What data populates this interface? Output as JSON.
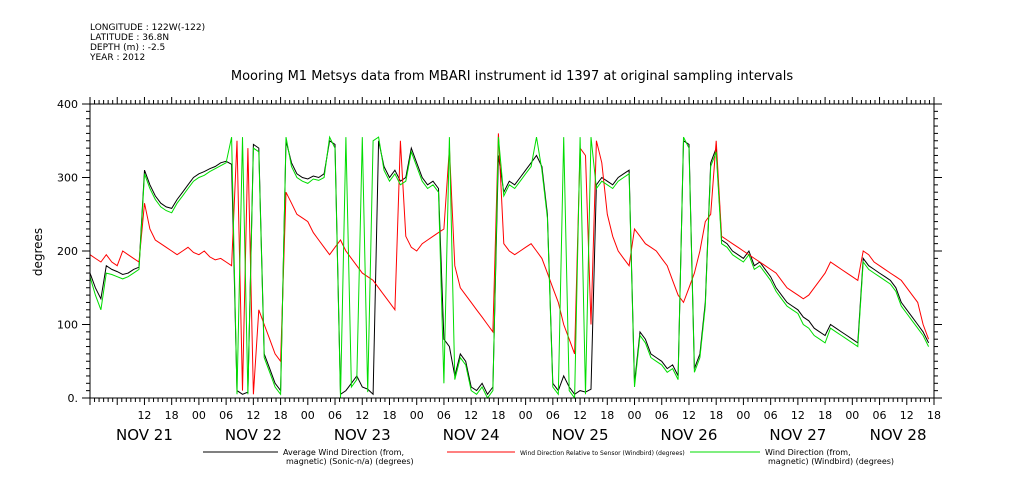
{
  "meta": {
    "longitude": "LONGITUDE : 122W(-122)",
    "latitude": "LATITUDE : 36.8N",
    "depth": "DEPTH (m) : -2.5",
    "year": "YEAR : 2012"
  },
  "chart_data": {
    "type": "line",
    "title": "Mooring M1 Metsys data from MBARI instrument id 1397 at original sampling intervals",
    "ylabel": "degrees",
    "ylim": [
      0,
      400
    ],
    "yticks": [
      0,
      100,
      200,
      300,
      400
    ],
    "ytick_labels": [
      "0.",
      "100",
      "200",
      "300",
      "400"
    ],
    "xlim": [
      0,
      7.75
    ],
    "x_hour_ticks": [
      {
        "x": 0.5,
        "label": "12"
      },
      {
        "x": 0.75,
        "label": "18"
      },
      {
        "x": 1.0,
        "label": "00"
      },
      {
        "x": 1.25,
        "label": "06"
      },
      {
        "x": 1.5,
        "label": "12"
      },
      {
        "x": 1.75,
        "label": "18"
      },
      {
        "x": 2.0,
        "label": "00"
      },
      {
        "x": 2.25,
        "label": "06"
      },
      {
        "x": 2.5,
        "label": "12"
      },
      {
        "x": 2.75,
        "label": "18"
      },
      {
        "x": 3.0,
        "label": "00"
      },
      {
        "x": 3.25,
        "label": "06"
      },
      {
        "x": 3.5,
        "label": "12"
      },
      {
        "x": 3.75,
        "label": "18"
      },
      {
        "x": 4.0,
        "label": "00"
      },
      {
        "x": 4.25,
        "label": "06"
      },
      {
        "x": 4.5,
        "label": "12"
      },
      {
        "x": 4.75,
        "label": "18"
      },
      {
        "x": 5.0,
        "label": "00"
      },
      {
        "x": 5.25,
        "label": "06"
      },
      {
        "x": 5.5,
        "label": "12"
      },
      {
        "x": 5.75,
        "label": "18"
      },
      {
        "x": 6.0,
        "label": "00"
      },
      {
        "x": 6.25,
        "label": "06"
      },
      {
        "x": 6.5,
        "label": "12"
      },
      {
        "x": 6.75,
        "label": "18"
      },
      {
        "x": 7.0,
        "label": "00"
      },
      {
        "x": 7.25,
        "label": "06"
      },
      {
        "x": 7.5,
        "label": "12"
      },
      {
        "x": 7.75,
        "label": "18"
      }
    ],
    "x_day_labels": [
      {
        "x": 0.5,
        "label": "NOV 21"
      },
      {
        "x": 1.5,
        "label": "NOV 22"
      },
      {
        "x": 2.5,
        "label": "NOV 23"
      },
      {
        "x": 3.5,
        "label": "NOV 24"
      },
      {
        "x": 4.5,
        "label": "NOV 25"
      },
      {
        "x": 5.5,
        "label": "NOV 26"
      },
      {
        "x": 6.5,
        "label": "NOV 27"
      },
      {
        "x": 7.42,
        "label": "NOV 28"
      }
    ],
    "series": [
      {
        "name": "Average Wind Direction (from, magnetic) (Sonic-n/a) (degrees)",
        "name_line1": "Average Wind Direction (from,",
        "name_line2": "magnetic) (Sonic-n/a) (degrees)",
        "color": "#000000",
        "x": [
          0.0,
          0.05,
          0.1,
          0.15,
          0.2,
          0.25,
          0.3,
          0.35,
          0.4,
          0.45,
          0.5,
          0.55,
          0.6,
          0.65,
          0.7,
          0.75,
          0.8,
          0.85,
          0.9,
          0.95,
          1.0,
          1.05,
          1.1,
          1.15,
          1.2,
          1.25,
          1.3,
          1.35,
          1.4,
          1.45,
          1.5,
          1.55,
          1.6,
          1.65,
          1.7,
          1.75,
          1.8,
          1.85,
          1.9,
          1.95,
          2.0,
          2.05,
          2.1,
          2.15,
          2.2,
          2.25,
          2.3,
          2.35,
          2.4,
          2.45,
          2.5,
          2.55,
          2.6,
          2.65,
          2.7,
          2.75,
          2.8,
          2.85,
          2.9,
          2.95,
          3.0,
          3.05,
          3.1,
          3.15,
          3.2,
          3.25,
          3.3,
          3.35,
          3.4,
          3.45,
          3.5,
          3.55,
          3.6,
          3.65,
          3.7,
          3.75,
          3.8,
          3.85,
          3.9,
          3.95,
          4.0,
          4.05,
          4.1,
          4.15,
          4.2,
          4.25,
          4.3,
          4.35,
          4.4,
          4.45,
          4.5,
          4.55,
          4.6,
          4.65,
          4.7,
          4.75,
          4.8,
          4.85,
          4.9,
          4.95,
          5.0,
          5.05,
          5.1,
          5.15,
          5.2,
          5.25,
          5.3,
          5.35,
          5.4,
          5.45,
          5.5,
          5.55,
          5.6,
          5.65,
          5.7,
          5.75,
          5.8,
          5.85,
          5.9,
          5.95,
          6.0,
          6.05,
          6.1,
          6.15,
          6.2,
          6.25,
          6.3,
          6.35,
          6.4,
          6.45,
          6.5,
          6.55,
          6.6,
          6.65,
          6.7,
          6.75,
          6.8,
          6.85,
          6.9,
          6.95,
          7.0,
          7.05,
          7.1,
          7.15,
          7.2,
          7.25,
          7.3,
          7.35,
          7.4,
          7.45,
          7.5,
          7.55,
          7.6,
          7.65,
          7.7
        ],
        "y": [
          170,
          150,
          135,
          180,
          175,
          172,
          168,
          170,
          175,
          178,
          310,
          290,
          275,
          265,
          260,
          258,
          270,
          280,
          290,
          300,
          305,
          308,
          312,
          315,
          320,
          322,
          318,
          10,
          5,
          8,
          345,
          340,
          60,
          40,
          20,
          10,
          350,
          320,
          305,
          300,
          298,
          302,
          300,
          305,
          350,
          345,
          5,
          10,
          20,
          30,
          15,
          12,
          5,
          350,
          315,
          300,
          310,
          295,
          300,
          340,
          320,
          300,
          290,
          295,
          285,
          80,
          70,
          30,
          60,
          50,
          15,
          10,
          20,
          5,
          15,
          330,
          280,
          295,
          290,
          300,
          310,
          320,
          330,
          315,
          250,
          20,
          10,
          30,
          15,
          5,
          10,
          8,
          12,
          290,
          300,
          295,
          290,
          300,
          305,
          310,
          20,
          90,
          80,
          60,
          55,
          50,
          40,
          45,
          30,
          350,
          345,
          40,
          60,
          130,
          320,
          340,
          215,
          210,
          200,
          195,
          190,
          200,
          180,
          185,
          175,
          165,
          150,
          140,
          130,
          125,
          120,
          110,
          105,
          95,
          90,
          85,
          100,
          95,
          90,
          85,
          80,
          75,
          190,
          180,
          175,
          170,
          165,
          160,
          150,
          130,
          120,
          110,
          100,
          90,
          75
        ]
      },
      {
        "name": "Wind Direction Relative to Sensor (Windbird) (degrees)",
        "name_line1": "Wind Direction Relative to Sensor (Windbird) (degrees)",
        "color": "#ff0000",
        "x": [
          0.0,
          0.05,
          0.1,
          0.15,
          0.2,
          0.25,
          0.3,
          0.35,
          0.4,
          0.45,
          0.5,
          0.55,
          0.6,
          0.65,
          0.7,
          0.75,
          0.8,
          0.85,
          0.9,
          0.95,
          1.0,
          1.05,
          1.1,
          1.15,
          1.2,
          1.25,
          1.3,
          1.35,
          1.4,
          1.45,
          1.5,
          1.55,
          1.6,
          1.65,
          1.7,
          1.75,
          1.8,
          1.85,
          1.9,
          1.95,
          2.0,
          2.05,
          2.1,
          2.15,
          2.2,
          2.25,
          2.3,
          2.35,
          2.4,
          2.45,
          2.5,
          2.55,
          2.6,
          2.65,
          2.7,
          2.75,
          2.8,
          2.85,
          2.9,
          2.95,
          3.0,
          3.05,
          3.1,
          3.15,
          3.2,
          3.25,
          3.3,
          3.35,
          3.4,
          3.45,
          3.5,
          3.55,
          3.6,
          3.65,
          3.7,
          3.75,
          3.8,
          3.85,
          3.9,
          3.95,
          4.0,
          4.05,
          4.1,
          4.15,
          4.2,
          4.25,
          4.3,
          4.35,
          4.4,
          4.45,
          4.5,
          4.55,
          4.6,
          4.65,
          4.7,
          4.75,
          4.8,
          4.85,
          4.9,
          4.95,
          5.0,
          5.05,
          5.1,
          5.15,
          5.2,
          5.25,
          5.3,
          5.35,
          5.4,
          5.45,
          5.5,
          5.55,
          5.6,
          5.65,
          5.7,
          5.75,
          5.8,
          5.85,
          5.9,
          5.95,
          6.0,
          6.05,
          6.1,
          6.15,
          6.2,
          6.25,
          6.3,
          6.35,
          6.4,
          6.45,
          6.5,
          6.55,
          6.6,
          6.65,
          6.7,
          6.75,
          6.8,
          6.85,
          6.9,
          6.95,
          7.0,
          7.05,
          7.1,
          7.15,
          7.2,
          7.25,
          7.3,
          7.35,
          7.4,
          7.45,
          7.5,
          7.55,
          7.6,
          7.65,
          7.7
        ],
        "y": [
          195,
          190,
          185,
          195,
          185,
          180,
          200,
          195,
          190,
          185,
          265,
          230,
          215,
          210,
          205,
          200,
          195,
          200,
          205,
          198,
          195,
          200,
          192,
          188,
          190,
          185,
          180,
          350,
          10,
          340,
          5,
          120,
          100,
          80,
          60,
          50,
          280,
          265,
          250,
          245,
          240,
          225,
          215,
          205,
          195,
          205,
          215,
          200,
          190,
          180,
          170,
          165,
          160,
          150,
          140,
          130,
          120,
          350,
          220,
          205,
          200,
          210,
          215,
          220,
          225,
          230,
          340,
          180,
          150,
          140,
          130,
          120,
          110,
          100,
          90,
          360,
          210,
          200,
          195,
          200,
          205,
          210,
          200,
          190,
          170,
          150,
          130,
          100,
          80,
          60,
          340,
          330,
          100,
          350,
          320,
          250,
          220,
          200,
          190,
          180,
          230,
          220,
          210,
          205,
          200,
          190,
          180,
          160,
          140,
          130,
          150,
          170,
          200,
          240,
          250,
          350,
          220,
          215,
          210,
          205,
          200,
          195,
          190,
          185,
          180,
          175,
          170,
          160,
          150,
          145,
          140,
          135,
          140,
          150,
          160,
          170,
          185,
          180,
          175,
          170,
          165,
          160,
          200,
          195,
          185,
          180,
          175,
          170,
          165,
          160,
          150,
          140,
          130,
          100,
          80
        ]
      },
      {
        "name": "Wind Direction (from, magnetic) (Windbird) (degrees)",
        "name_line1": "Wind Direction (from,",
        "name_line2": "magnetic) (Windbird) (degrees)",
        "color": "#00dd00",
        "x": [
          0.0,
          0.05,
          0.1,
          0.15,
          0.2,
          0.25,
          0.3,
          0.35,
          0.4,
          0.45,
          0.5,
          0.55,
          0.6,
          0.65,
          0.7,
          0.75,
          0.8,
          0.85,
          0.9,
          0.95,
          1.0,
          1.05,
          1.1,
          1.15,
          1.2,
          1.25,
          1.3,
          1.35,
          1.4,
          1.45,
          1.5,
          1.55,
          1.6,
          1.65,
          1.7,
          1.75,
          1.8,
          1.85,
          1.9,
          1.95,
          2.0,
          2.05,
          2.1,
          2.15,
          2.2,
          2.25,
          2.3,
          2.35,
          2.4,
          2.45,
          2.5,
          2.55,
          2.6,
          2.65,
          2.7,
          2.75,
          2.8,
          2.85,
          2.9,
          2.95,
          3.0,
          3.05,
          3.1,
          3.15,
          3.2,
          3.25,
          3.3,
          3.35,
          3.4,
          3.45,
          3.5,
          3.55,
          3.6,
          3.65,
          3.7,
          3.75,
          3.8,
          3.85,
          3.9,
          3.95,
          4.0,
          4.05,
          4.1,
          4.15,
          4.2,
          4.25,
          4.3,
          4.35,
          4.4,
          4.45,
          4.5,
          4.55,
          4.6,
          4.65,
          4.7,
          4.75,
          4.8,
          4.85,
          4.9,
          4.95,
          5.0,
          5.05,
          5.1,
          5.15,
          5.2,
          5.25,
          5.3,
          5.35,
          5.4,
          5.45,
          5.5,
          5.55,
          5.6,
          5.65,
          5.7,
          5.75,
          5.8,
          5.85,
          5.9,
          5.95,
          6.0,
          6.05,
          6.1,
          6.15,
          6.2,
          6.25,
          6.3,
          6.35,
          6.4,
          6.45,
          6.5,
          6.55,
          6.6,
          6.65,
          6.7,
          6.75,
          6.8,
          6.85,
          6.9,
          6.95,
          7.0,
          7.05,
          7.1,
          7.15,
          7.2,
          7.25,
          7.3,
          7.35,
          7.4,
          7.45,
          7.5,
          7.55,
          7.6,
          7.65,
          7.7
        ],
        "y": [
          165,
          140,
          120,
          170,
          168,
          165,
          162,
          165,
          170,
          175,
          305,
          285,
          270,
          260,
          255,
          252,
          265,
          275,
          285,
          295,
          300,
          303,
          308,
          312,
          316,
          320,
          355,
          5,
          355,
          5,
          340,
          335,
          55,
          35,
          15,
          5,
          355,
          315,
          300,
          295,
          292,
          298,
          296,
          300,
          355,
          340,
          0,
          355,
          15,
          25,
          355,
          8,
          350,
          355,
          310,
          295,
          305,
          290,
          295,
          335,
          315,
          295,
          285,
          290,
          280,
          20,
          355,
          25,
          55,
          45,
          10,
          5,
          15,
          0,
          10,
          355,
          275,
          290,
          285,
          295,
          305,
          315,
          355,
          310,
          245,
          15,
          5,
          355,
          10,
          0,
          355,
          5,
          355,
          285,
          295,
          290,
          285,
          295,
          300,
          305,
          15,
          85,
          75,
          55,
          50,
          45,
          35,
          40,
          25,
          355,
          340,
          35,
          55,
          125,
          315,
          335,
          210,
          205,
          195,
          190,
          185,
          195,
          175,
          180,
          170,
          160,
          145,
          135,
          125,
          120,
          115,
          100,
          95,
          85,
          80,
          75,
          95,
          90,
          85,
          80,
          75,
          70,
          185,
          175,
          170,
          165,
          160,
          155,
          145,
          125,
          115,
          105,
          95,
          85,
          70
        ]
      }
    ]
  }
}
